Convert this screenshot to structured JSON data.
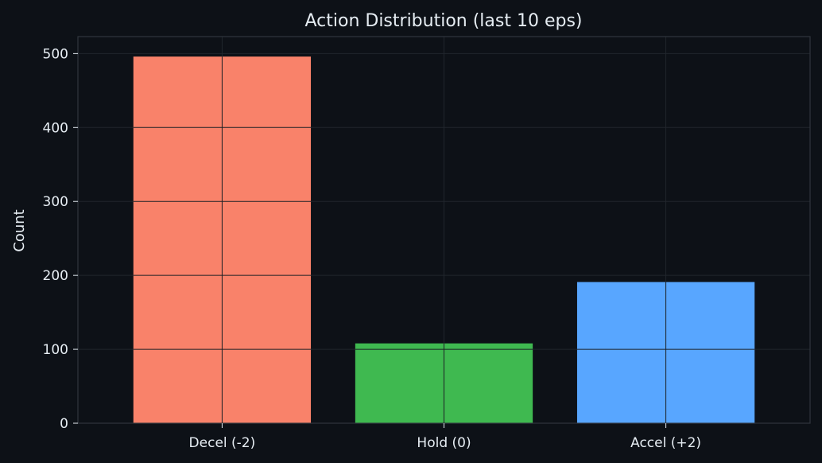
{
  "chart_data": {
    "type": "bar",
    "title": "Action Distribution (last 10 eps)",
    "xlabel": "",
    "ylabel": "Count",
    "categories": [
      "Decel (-2)",
      "Hold (0)",
      "Accel (+2)"
    ],
    "values": [
      496,
      108,
      191
    ],
    "colors": [
      "#f9826a",
      "#3fb950",
      "#58a6ff"
    ],
    "ylim": [
      0,
      523
    ],
    "yticks": [
      0,
      100,
      200,
      300,
      400,
      500
    ],
    "grid": true
  },
  "theme": {
    "background": "#0d1117",
    "text": "#e6edf3",
    "axis": "#30363d",
    "grid": "#21262d",
    "gridOverBars": "#1b1f24"
  }
}
